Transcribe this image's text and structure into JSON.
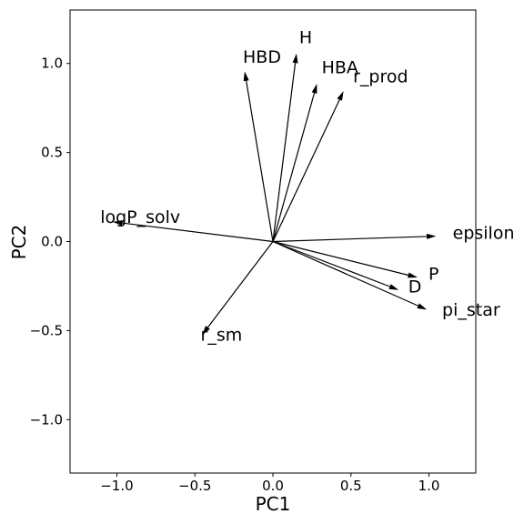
{
  "chart_data": {
    "type": "biplot",
    "title": "",
    "xlabel": "PC1",
    "ylabel": "PC2",
    "xlim": [
      -1.3,
      1.3
    ],
    "ylim": [
      -1.3,
      1.3
    ],
    "x_ticks": [
      -1.0,
      -0.5,
      0.0,
      0.5,
      1.0
    ],
    "y_ticks": [
      -1.0,
      -0.5,
      0.0,
      0.5,
      1.0
    ],
    "x_tick_labels": [
      "−1.0",
      "−0.5",
      "0.0",
      "0.5",
      "1.0"
    ],
    "y_tick_labels": [
      "−1.0",
      "−0.5",
      "0.0",
      "0.5",
      "1.0"
    ],
    "grid": false,
    "arrow_color": "#000000",
    "vectors": [
      {
        "name": "HBD",
        "x": -0.18,
        "y": 0.95,
        "label_x": -0.07,
        "label_y": 1.04
      },
      {
        "name": "H",
        "x": 0.15,
        "y": 1.05,
        "label_x": 0.21,
        "label_y": 1.15
      },
      {
        "name": "HBA",
        "x": 0.28,
        "y": 0.88,
        "label_x": 0.43,
        "label_y": 0.98
      },
      {
        "name": "r_prod",
        "x": 0.45,
        "y": 0.84,
        "label_x": 0.69,
        "label_y": 0.93
      },
      {
        "name": "logP_solv",
        "x": -1.02,
        "y": 0.11,
        "label_x": -0.85,
        "label_y": 0.14
      },
      {
        "name": "epsilon",
        "x": 1.04,
        "y": 0.03,
        "label_x": 1.35,
        "label_y": 0.05
      },
      {
        "name": "P",
        "x": 0.92,
        "y": -0.2,
        "label_x": 1.03,
        "label_y": -0.18
      },
      {
        "name": "D",
        "x": 0.8,
        "y": -0.27,
        "label_x": 0.91,
        "label_y": -0.25
      },
      {
        "name": "pi_star",
        "x": 0.98,
        "y": -0.38,
        "label_x": 1.27,
        "label_y": -0.38
      },
      {
        "name": "r_sm",
        "x": -0.45,
        "y": -0.52,
        "label_x": -0.33,
        "label_y": -0.52
      }
    ]
  }
}
